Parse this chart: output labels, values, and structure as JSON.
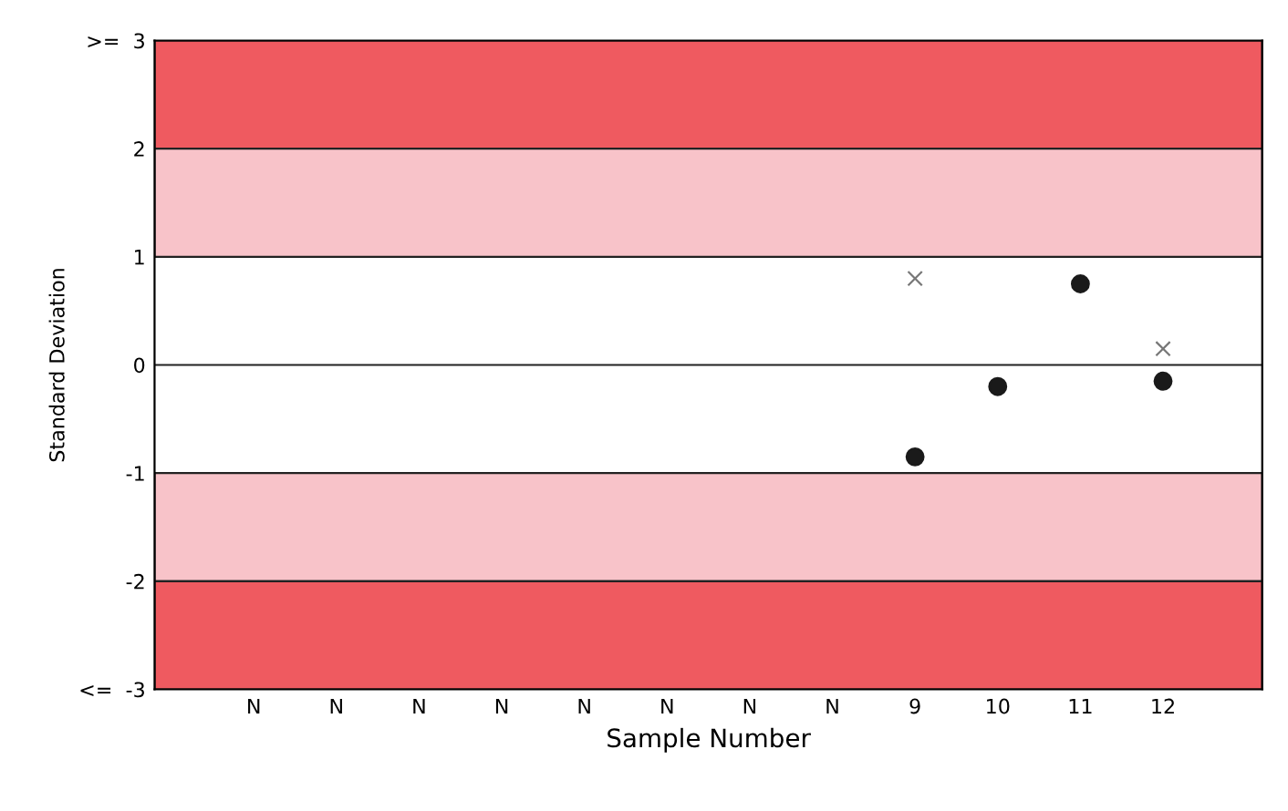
{
  "chart_data": {
    "type": "scatter",
    "xlabel": "Sample Number",
    "ylabel": "Standard Deviation",
    "categories": [
      "N",
      "N",
      "N",
      "N",
      "N",
      "N",
      "N",
      "N",
      "9",
      "10",
      "11",
      "12",
      null
    ],
    "series": [
      {
        "marker": "circle",
        "color": "#1a1a1a",
        "values": [
          null,
          null,
          null,
          null,
          null,
          null,
          null,
          null,
          -0.85,
          -0.2,
          0.75,
          -0.15,
          null
        ]
      },
      {
        "marker": "cross",
        "color": "#777777",
        "values": [
          null,
          null,
          null,
          null,
          null,
          null,
          null,
          null,
          0.8,
          null,
          null,
          0.15,
          null
        ]
      }
    ],
    "ylim": [
      -3,
      3
    ],
    "yticks": [
      {
        "value": 3,
        "label": ">=  3"
      },
      2,
      1,
      0,
      -1,
      -2,
      {
        "value": -3,
        "label": "<=  -3"
      }
    ],
    "bands": [
      {
        "axis": "y",
        "from": 2,
        "to": 3,
        "color": "#ef5a60"
      },
      {
        "axis": "y",
        "from": 1,
        "to": 2,
        "color": "#f8c3c9"
      },
      {
        "axis": "y",
        "from": -2,
        "to": -1,
        "color": "#f8c3c9"
      },
      {
        "axis": "y",
        "from": -3,
        "to": -2,
        "color": "#ef5a60"
      }
    ],
    "ref_lines": [
      {
        "axis": "y",
        "value": 0,
        "color": "#222222"
      }
    ],
    "grid": false,
    "legend": false
  }
}
